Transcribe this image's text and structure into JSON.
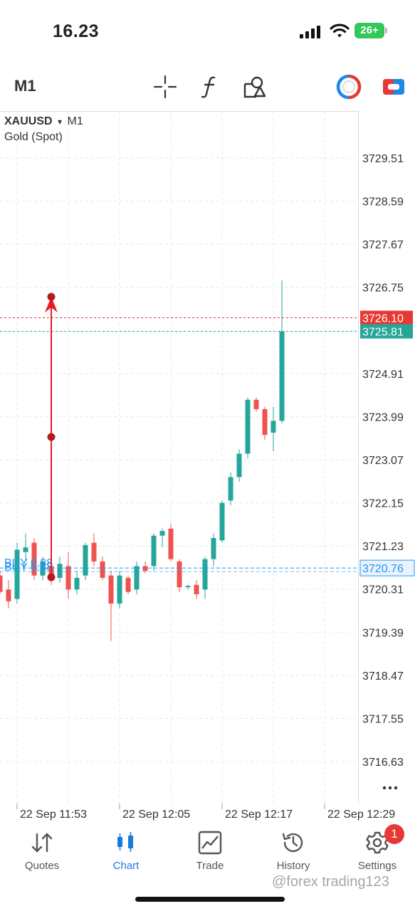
{
  "status_bar": {
    "time": "16.23",
    "battery": "26+"
  },
  "toolbar": {
    "timeframe": "M1",
    "icons": [
      "crosshair-icon",
      "function-icon",
      "objects-icon",
      "one-click-icon",
      "trade-mode-icon"
    ]
  },
  "chart_header": {
    "symbol": "XAUUSD",
    "dropdown": "▾",
    "timeframe": "M1",
    "description": "Gold (Spot)"
  },
  "chart_data": {
    "type": "candlestick",
    "title": "XAUUSD ▾ M1",
    "subtitle": "Gold (Spot)",
    "price_ticks": [
      "3729.51",
      "3728.59",
      "3727.67",
      "3726.75",
      "3725.81",
      "3724.91",
      "3723.99",
      "3723.07",
      "3722.15",
      "3721.23",
      "3720.31",
      "3719.39",
      "3718.47",
      "3717.55",
      "3716.63"
    ],
    "price_range": [
      3716.0,
      3730.1
    ],
    "time_ticks": [
      "22 Sep 11:53",
      "22 Sep 12:05",
      "22 Sep 12:17",
      "22 Sep 12:29"
    ],
    "bid_price": "3725.81",
    "ask_price": "3726.10",
    "position_price": "3720.76",
    "position_labels": [
      "BUY 0.88",
      "BUY 0.88"
    ],
    "colors": {
      "up": "#26a69a",
      "down": "#ef5350",
      "ask": "#e53935",
      "position": "#2196f3",
      "drawing": "#e51c23"
    },
    "candles": [
      {
        "o": 3720.6,
        "h": 3720.7,
        "l": 3720.2,
        "c": 3720.25
      },
      {
        "o": 3720.3,
        "h": 3720.5,
        "l": 3719.9,
        "c": 3720.05
      },
      {
        "o": 3720.1,
        "h": 3721.3,
        "l": 3720.0,
        "c": 3721.15
      },
      {
        "o": 3721.1,
        "h": 3721.5,
        "l": 3720.9,
        "c": 3721.2
      },
      {
        "o": 3721.3,
        "h": 3721.4,
        "l": 3720.5,
        "c": 3720.6
      },
      {
        "o": 3720.6,
        "h": 3721.0,
        "l": 3720.5,
        "c": 3720.9
      },
      {
        "o": 3720.8,
        "h": 3721.0,
        "l": 3720.4,
        "c": 3720.5
      },
      {
        "o": 3720.55,
        "h": 3721.0,
        "l": 3720.45,
        "c": 3720.85
      },
      {
        "o": 3720.8,
        "h": 3721.1,
        "l": 3720.1,
        "c": 3720.3
      },
      {
        "o": 3720.3,
        "h": 3720.7,
        "l": 3720.2,
        "c": 3720.55
      },
      {
        "o": 3720.6,
        "h": 3721.3,
        "l": 3720.5,
        "c": 3721.25
      },
      {
        "o": 3721.3,
        "h": 3721.5,
        "l": 3720.8,
        "c": 3720.9
      },
      {
        "o": 3720.9,
        "h": 3721.0,
        "l": 3720.5,
        "c": 3720.55
      },
      {
        "o": 3720.6,
        "h": 3720.7,
        "l": 3719.2,
        "c": 3720.0
      },
      {
        "o": 3720.0,
        "h": 3720.7,
        "l": 3719.9,
        "c": 3720.6
      },
      {
        "o": 3720.55,
        "h": 3720.6,
        "l": 3720.2,
        "c": 3720.25
      },
      {
        "o": 3720.3,
        "h": 3720.9,
        "l": 3720.2,
        "c": 3720.8
      },
      {
        "o": 3720.8,
        "h": 3720.9,
        "l": 3720.65,
        "c": 3720.7
      },
      {
        "o": 3720.8,
        "h": 3721.5,
        "l": 3720.7,
        "c": 3721.45
      },
      {
        "o": 3721.45,
        "h": 3721.6,
        "l": 3721.2,
        "c": 3721.55
      },
      {
        "o": 3721.6,
        "h": 3721.7,
        "l": 3720.9,
        "c": 3720.95
      },
      {
        "o": 3720.9,
        "h": 3720.95,
        "l": 3720.25,
        "c": 3720.35
      },
      {
        "o": 3720.35,
        "h": 3720.4,
        "l": 3720.3,
        "c": 3720.38
      },
      {
        "o": 3720.4,
        "h": 3720.5,
        "l": 3720.1,
        "c": 3720.2
      },
      {
        "o": 3720.3,
        "h": 3721.0,
        "l": 3720.1,
        "c": 3720.95
      },
      {
        "o": 3720.95,
        "h": 3721.5,
        "l": 3720.8,
        "c": 3721.4
      },
      {
        "o": 3721.35,
        "h": 3722.2,
        "l": 3721.3,
        "c": 3722.15
      },
      {
        "o": 3722.2,
        "h": 3722.8,
        "l": 3722.1,
        "c": 3722.7
      },
      {
        "o": 3722.7,
        "h": 3723.3,
        "l": 3722.6,
        "c": 3723.2
      },
      {
        "o": 3723.2,
        "h": 3724.4,
        "l": 3723.1,
        "c": 3724.35
      },
      {
        "o": 3724.35,
        "h": 3724.4,
        "l": 3724.1,
        "c": 3724.15
      },
      {
        "o": 3724.15,
        "h": 3724.2,
        "l": 3723.5,
        "c": 3723.6
      },
      {
        "o": 3723.65,
        "h": 3724.2,
        "l": 3723.25,
        "c": 3723.9
      },
      {
        "o": 3723.9,
        "h": 3726.9,
        "l": 3723.85,
        "c": 3725.81
      }
    ]
  },
  "nav": {
    "items": [
      {
        "label": "Quotes",
        "icon": "quotes-icon"
      },
      {
        "label": "Chart",
        "icon": "chart-icon"
      },
      {
        "label": "Trade",
        "icon": "trade-icon"
      },
      {
        "label": "History",
        "icon": "history-icon"
      },
      {
        "label": "Settings",
        "icon": "settings-icon"
      }
    ],
    "active": "Chart",
    "settings_badge": "1"
  },
  "watermark": "@forex trading123"
}
